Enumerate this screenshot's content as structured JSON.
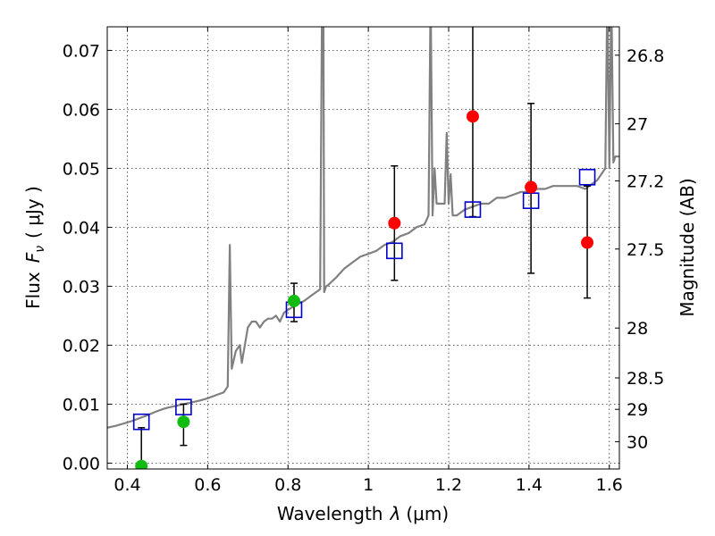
{
  "chart_data": {
    "type": "scatter",
    "title": "",
    "xlabel_text": "Wavelength",
    "xlabel_symbol": "λ",
    "xlabel_unit": "(μm)",
    "ylabel_text": "Flux",
    "ylabel_symbol": "F",
    "ylabel_sub": "ν",
    "ylabel_unit": "( μJy )",
    "y2label": "Magnitude (AB)",
    "xlim": [
      0.35,
      1.625
    ],
    "ylim": [
      -0.001,
      0.074
    ],
    "grid": true,
    "x_ticks": [
      0.4,
      0.6,
      0.8,
      1.0,
      1.2,
      1.4,
      1.6
    ],
    "x_tick_labels": [
      "0.4",
      "0.6",
      "0.8",
      "1",
      "1.2",
      "1.4",
      "1.6"
    ],
    "y_ticks": [
      0.0,
      0.01,
      0.02,
      0.03,
      0.04,
      0.05,
      0.06,
      0.07
    ],
    "y_tick_labels": [
      "0.00",
      "0.01",
      "0.02",
      "0.03",
      "0.04",
      "0.05",
      "0.06",
      "0.07"
    ],
    "y2_ticks": [
      26.8,
      27,
      27.2,
      27.5,
      28,
      28.5,
      29,
      30
    ],
    "y2_tick_labels": [
      "26.8",
      "27",
      "27.2",
      "27.5",
      "28",
      "28.5",
      "29",
      "30"
    ],
    "colors": {
      "spectrum": "#808080",
      "model": "#0000cc",
      "detection": "#ff0000",
      "optical": "#11bb11",
      "errorbar": "#000000"
    },
    "spectrum": {
      "x": [
        0.35,
        0.37,
        0.39,
        0.41,
        0.43,
        0.45,
        0.47,
        0.49,
        0.5,
        0.52,
        0.54,
        0.56,
        0.58,
        0.6,
        0.62,
        0.64,
        0.65,
        0.655,
        0.66,
        0.665,
        0.67,
        0.68,
        0.685,
        0.69,
        0.7,
        0.71,
        0.72,
        0.73,
        0.74,
        0.75,
        0.76,
        0.77,
        0.78,
        0.79,
        0.8,
        0.82,
        0.84,
        0.86,
        0.88,
        0.885,
        0.888,
        0.89,
        0.895,
        0.9,
        0.92,
        0.94,
        0.96,
        0.98,
        1.0,
        1.02,
        1.04,
        1.06,
        1.08,
        1.1,
        1.12,
        1.14,
        1.15,
        1.155,
        1.16,
        1.165,
        1.17,
        1.18,
        1.19,
        1.195,
        1.2,
        1.205,
        1.21,
        1.22,
        1.23,
        1.24,
        1.26,
        1.28,
        1.3,
        1.32,
        1.34,
        1.36,
        1.38,
        1.4,
        1.42,
        1.44,
        1.46,
        1.48,
        1.5,
        1.52,
        1.54,
        1.55,
        1.56,
        1.57,
        1.58,
        1.59,
        1.595,
        1.6,
        1.605,
        1.61,
        1.615,
        1.62,
        1.625
      ],
      "y": [
        0.006,
        0.0063,
        0.0067,
        0.0071,
        0.0076,
        0.0081,
        0.0087,
        0.0092,
        0.0094,
        0.0097,
        0.01,
        0.0103,
        0.0106,
        0.011,
        0.0115,
        0.012,
        0.013,
        0.037,
        0.016,
        0.0175,
        0.019,
        0.02,
        0.017,
        0.019,
        0.023,
        0.024,
        0.024,
        0.023,
        0.024,
        0.0245,
        0.0245,
        0.025,
        0.024,
        0.0255,
        0.026,
        0.0268,
        0.0275,
        0.0285,
        0.0295,
        0.08,
        0.08,
        0.029,
        0.03,
        0.0302,
        0.0315,
        0.033,
        0.034,
        0.035,
        0.0355,
        0.036,
        0.037,
        0.0375,
        0.0385,
        0.039,
        0.04,
        0.0405,
        0.042,
        0.08,
        0.042,
        0.05,
        0.044,
        0.044,
        0.044,
        0.056,
        0.044,
        0.049,
        0.042,
        0.042,
        0.0425,
        0.043,
        0.0435,
        0.044,
        0.044,
        0.045,
        0.045,
        0.0455,
        0.046,
        0.046,
        0.0465,
        0.0465,
        0.047,
        0.047,
        0.047,
        0.047,
        0.0465,
        0.047,
        0.0475,
        0.048,
        0.049,
        0.05,
        0.08,
        0.05,
        0.08,
        0.051,
        0.052,
        0.052,
        0.052
      ]
    },
    "model_points": {
      "x": [
        0.435,
        0.54,
        0.815,
        1.065,
        1.26,
        1.405,
        1.545
      ],
      "y": [
        0.007,
        0.0095,
        0.026,
        0.036,
        0.043,
        0.0445,
        0.0485
      ]
    },
    "optical_points": {
      "x": [
        0.435,
        0.54,
        0.815
      ],
      "y": [
        -0.0005,
        0.007,
        0.0275
      ],
      "err_low": [
        0.006,
        0.004,
        0.0035
      ],
      "err_high": [
        0.0065,
        0.003,
        0.003
      ]
    },
    "detection_points": {
      "x": [
        1.065,
        1.26,
        1.405,
        1.545
      ],
      "y": [
        0.0407,
        0.0588,
        0.0468,
        0.0374
      ],
      "err_low": [
        0.0097,
        0.017,
        0.0146,
        0.0094
      ],
      "err_high": [
        0.0097,
        0.02,
        0.0142,
        0.0096
      ]
    }
  }
}
